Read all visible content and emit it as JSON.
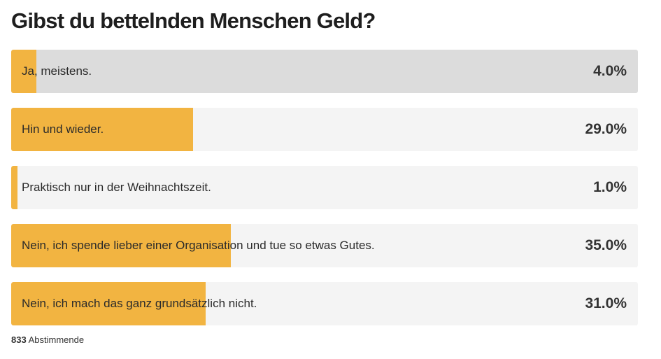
{
  "colors": {
    "bar_fill": "#f2b441",
    "track": "#f4f4f4",
    "track_selected": "#dcdcdc"
  },
  "chart_data": {
    "type": "bar",
    "title": "Gibst du bettelnden Menschen Geld?",
    "categories": [
      "Ja, meistens.",
      "Hin und wieder.",
      "Praktisch nur in der Weihnachtszeit.",
      "Nein, ich spende lieber einer Organisation und tue so etwas Gutes.",
      "Nein, ich mach das ganz grundsätzlich nicht."
    ],
    "values": [
      4.0,
      29.0,
      1.0,
      35.0,
      31.0
    ],
    "value_labels": [
      "4.0%",
      "29.0%",
      "1.0%",
      "35.0%",
      "31.0%"
    ],
    "selected_index": 0,
    "ylim": [
      0,
      100
    ]
  },
  "footer": {
    "count": "833",
    "label": "Abstimmende"
  }
}
